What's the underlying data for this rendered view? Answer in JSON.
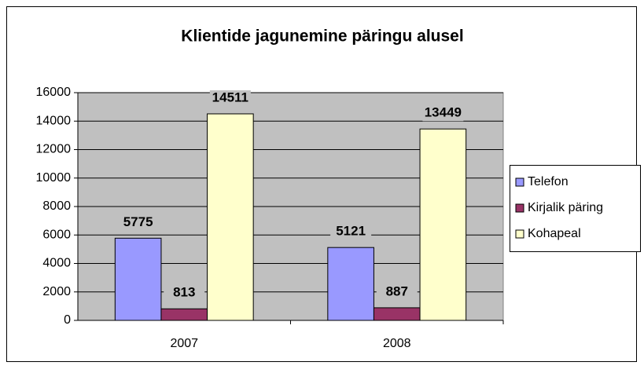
{
  "chart_data": {
    "type": "bar",
    "title": "Klientide jagunemine päringu alusel",
    "categories": [
      "2007",
      "2008"
    ],
    "series": [
      {
        "name": "Telefon",
        "color": "#9999ff",
        "values": [
          5775,
          5121
        ]
      },
      {
        "name": "Kirjalik päring",
        "color": "#993366",
        "values": [
          813,
          887
        ]
      },
      {
        "name": "Kohapeal",
        "color": "#ffffcc",
        "values": [
          14511,
          13449
        ]
      }
    ],
    "ylim": [
      0,
      16000
    ],
    "yticks": [
      0,
      2000,
      4000,
      6000,
      8000,
      10000,
      12000,
      14000,
      16000
    ],
    "grid": true,
    "legend": "right"
  }
}
